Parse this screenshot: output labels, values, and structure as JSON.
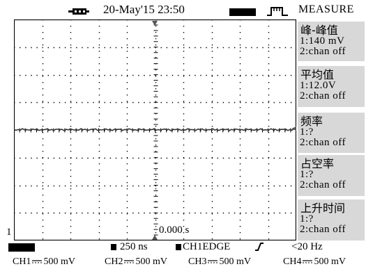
{
  "header": {
    "datetime": "20-May'15 23:50",
    "menu_title": "MEASURE"
  },
  "icons": {
    "usb": "usb-device-icon",
    "trigger_status": "trigger-pulse-icon",
    "edge": "rising-edge-icon"
  },
  "measure_menu": [
    {
      "title": "峰-峰值",
      "ch1": "1:140 mV",
      "ch2": "2:chan off"
    },
    {
      "title": "平均值",
      "ch1": "1:12.0V",
      "ch2": "2:chan off"
    },
    {
      "title": "频率",
      "ch1": "1:?",
      "ch2": "2:chan off"
    },
    {
      "title": "占空率",
      "ch1": "1:?",
      "ch2": "2:chan off"
    },
    {
      "title": "上升时间",
      "ch1": "1:?",
      "ch2": "2:chan off"
    }
  ],
  "screen": {
    "channel_marker": "1",
    "time_position": "0.000 s"
  },
  "status": {
    "timebase": "250 ns",
    "trigger": "CH1EDGE",
    "frequency": "<20 Hz"
  },
  "channels": [
    {
      "label": "CH1",
      "scale": "500 mV"
    },
    {
      "label": "CH2",
      "scale": "500 mV"
    },
    {
      "label": "CH3",
      "scale": "500 mV"
    },
    {
      "label": "CH4",
      "scale": "500 mV"
    }
  ],
  "colors": {
    "menu_bg": "#d8d8d8",
    "waveform": "#333333"
  }
}
